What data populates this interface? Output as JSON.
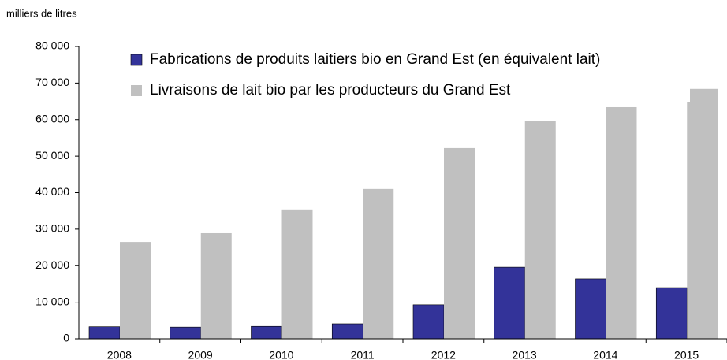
{
  "chart_data": {
    "type": "bar",
    "y_axis_label": "milliers de litres",
    "categories": [
      "2008",
      "2009",
      "2010",
      "2011",
      "2012",
      "2013",
      "2014",
      "2015"
    ],
    "series": [
      {
        "name": "Fabrications de produits laitiers bio en Grand Est (en équivalent lait)",
        "color": "#333399",
        "values": [
          3300,
          3200,
          3400,
          4100,
          9300,
          19600,
          16400,
          14000
        ]
      },
      {
        "name": "Livraisons de lait bio par les producteurs du Grand Est",
        "color": "#c0c0c0",
        "values": [
          26500,
          28900,
          35400,
          41000,
          52200,
          59700,
          63400,
          68400
        ]
      }
    ],
    "ylim": [
      0,
      80000
    ],
    "yticks": [
      {
        "value": 0,
        "label": "0"
      },
      {
        "value": 10000,
        "label": "10 000"
      },
      {
        "value": 20000,
        "label": "20 000"
      },
      {
        "value": 30000,
        "label": "30 000"
      },
      {
        "value": 40000,
        "label": "40 000"
      },
      {
        "value": 50000,
        "label": "50 000"
      },
      {
        "value": 60000,
        "label": "60 000"
      },
      {
        "value": 70000,
        "label": "70 000"
      },
      {
        "value": 80000,
        "label": "80 000"
      }
    ],
    "legend": "top"
  }
}
